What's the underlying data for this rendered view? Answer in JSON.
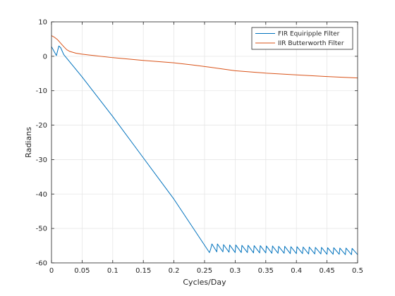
{
  "chart_data": {
    "type": "line",
    "title": "",
    "xlabel": "Cycles/Day",
    "ylabel": "Radians",
    "xlim": [
      0,
      0.5
    ],
    "ylim": [
      -60,
      10
    ],
    "xticks": [
      0,
      0.05,
      0.1,
      0.15,
      0.2,
      0.25,
      0.3,
      0.35,
      0.4,
      0.45,
      0.5
    ],
    "xtick_labels": [
      "0",
      "0.05",
      "0.1",
      "0.15",
      "0.2",
      "0.25",
      "0.3",
      "0.35",
      "0.4",
      "0.45",
      "0.5"
    ],
    "yticks": [
      10,
      0,
      -10,
      -20,
      -30,
      -40,
      -50,
      -60
    ],
    "ytick_labels": [
      "10",
      "0",
      "-10",
      "-20",
      "-30",
      "-40",
      "-50",
      "-60"
    ],
    "grid": true,
    "legend_position": "top-right",
    "series": [
      {
        "name": "FIR Equiripple Filter",
        "color": "#0072BD",
        "x": [
          0,
          0.008,
          0.012,
          0.015,
          0.02,
          0.05,
          0.1,
          0.15,
          0.2,
          0.258,
          0.26,
          0.262,
          0.27,
          0.271,
          0.28,
          0.281,
          0.29,
          0.291,
          0.3,
          0.301,
          0.31,
          0.311,
          0.32,
          0.321,
          0.33,
          0.331,
          0.34,
          0.341,
          0.35,
          0.351,
          0.36,
          0.361,
          0.37,
          0.371,
          0.38,
          0.381,
          0.39,
          0.391,
          0.4,
          0.401,
          0.41,
          0.411,
          0.42,
          0.421,
          0.43,
          0.431,
          0.44,
          0.441,
          0.45,
          0.451,
          0.46,
          0.461,
          0.47,
          0.471,
          0.48,
          0.481,
          0.49,
          0.491,
          0.5
        ],
        "y": [
          2.8,
          0.2,
          3,
          2.5,
          0.5,
          -6,
          -17.5,
          -29.5,
          -41.5,
          -57,
          -56,
          -54.5,
          -56.8,
          -54.5,
          -56.8,
          -54.7,
          -56.9,
          -54.8,
          -57,
          -54.8,
          -57,
          -54.9,
          -57,
          -54.9,
          -57.1,
          -55,
          -57.1,
          -55,
          -57.1,
          -55.1,
          -57.2,
          -55.1,
          -57.2,
          -55.2,
          -57.2,
          -55.2,
          -57.3,
          -55.3,
          -57.3,
          -55.3,
          -57.3,
          -55.4,
          -57.4,
          -55.4,
          -57.4,
          -55.5,
          -57.4,
          -55.5,
          -57.5,
          -55.6,
          -57.5,
          -55.6,
          -57.5,
          -55.7,
          -57.6,
          -55.7,
          -57.6,
          -55.8,
          -57.6
        ]
      },
      {
        "name": "IIR Butterworth Filter",
        "color": "#D95319",
        "x": [
          0,
          0.005,
          0.01,
          0.015,
          0.02,
          0.025,
          0.03,
          0.04,
          0.05,
          0.07,
          0.1,
          0.15,
          0.2,
          0.23,
          0.26,
          0.3,
          0.35,
          0.4,
          0.45,
          0.5
        ],
        "y": [
          6,
          5.5,
          4.8,
          3.8,
          2.8,
          1.9,
          1.4,
          0.9,
          0.6,
          0.2,
          -0.4,
          -1.2,
          -1.9,
          -2.5,
          -3.2,
          -4.2,
          -4.9,
          -5.4,
          -5.9,
          -6.3
        ]
      }
    ]
  }
}
